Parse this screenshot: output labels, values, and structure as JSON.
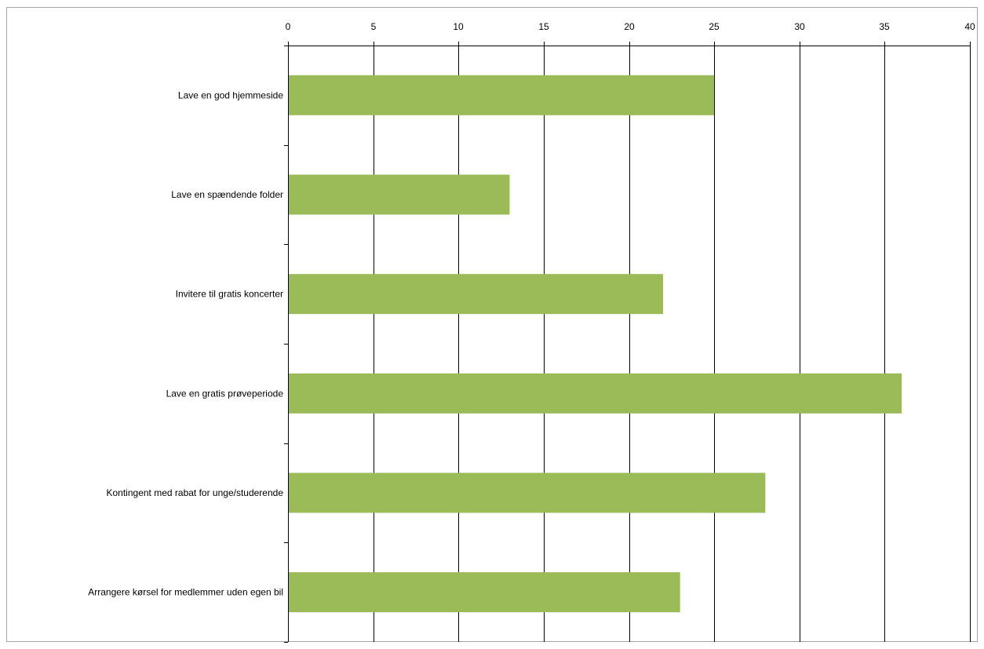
{
  "chart_data": {
    "type": "bar",
    "orientation": "horizontal",
    "title": "",
    "xlabel": "",
    "ylabel": "",
    "categories": [
      "Lave en god hjemmeside",
      "Lave en spændende folder",
      "Invitere til gratis koncerter",
      "Lave en gratis prøveperiode",
      "Kontingent med rabat for unge/studerende",
      "Arrangere kørsel for medlemmer uden egen bil"
    ],
    "values": [
      25,
      13,
      22,
      36,
      28,
      23
    ],
    "xlim": [
      0,
      40
    ],
    "x_ticks": [
      0,
      5,
      10,
      15,
      20,
      25,
      30,
      35,
      40
    ],
    "x_tick_labels": [
      "0",
      "5",
      "10",
      "15",
      "20",
      "25",
      "30",
      "35",
      "40"
    ],
    "axis_position": "top",
    "grid": "vertical",
    "legend": "none",
    "bar_color": "#9bbb59",
    "grid_color": "#000000"
  }
}
